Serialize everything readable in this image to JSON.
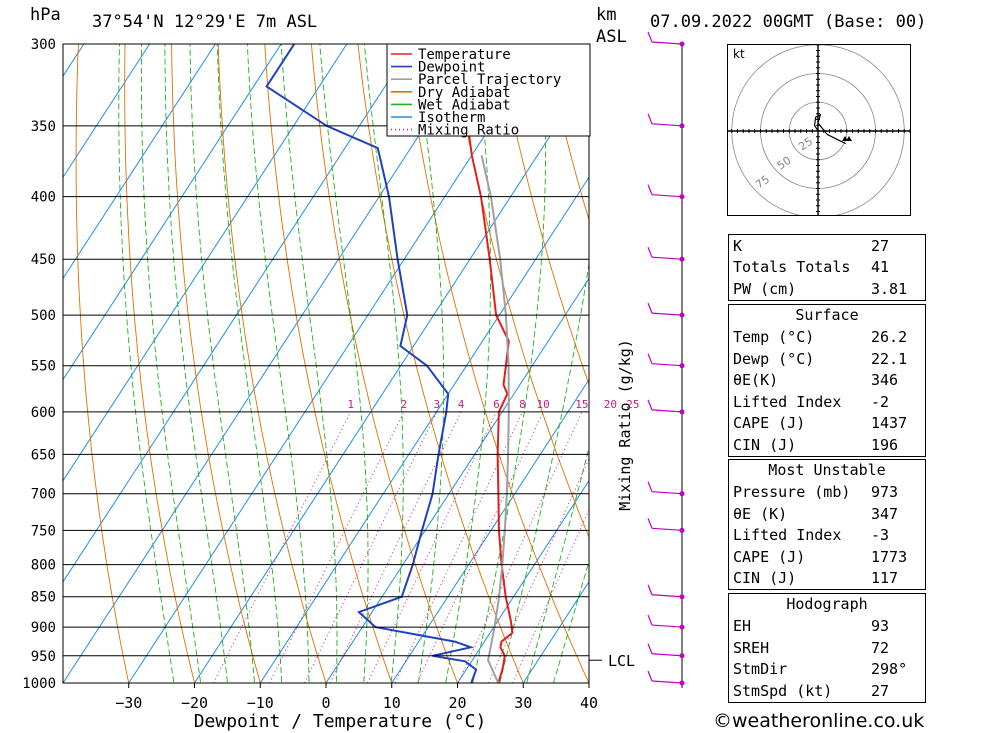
{
  "header": {
    "pressure_unit": "hPa",
    "location": "37°54'N  12°29'E  7m  ASL",
    "height_unit": "km",
    "height_ref": "ASL",
    "valid_time": "07.09.2022  00GMT  (Base: 00)"
  },
  "chart_data": {
    "type": "skew-t",
    "xlabel": "Dewpoint / Temperature (°C)",
    "ylabel": "hPa",
    "mixing_ratio_axis_label": "Mixing Ratio (g/kg)",
    "xlim": [
      -40,
      40
    ],
    "ylim_hpa": [
      1000,
      300
    ],
    "pressure_ticks": [
      300,
      350,
      400,
      450,
      500,
      550,
      600,
      650,
      700,
      750,
      800,
      850,
      900,
      950,
      1000
    ],
    "temperature_ticks": [
      -30,
      -20,
      -10,
      0,
      10,
      20,
      30,
      40
    ],
    "mixing_ratio_labels": [
      "1",
      "2",
      "3",
      "4",
      "6",
      "8",
      "10",
      "15",
      "20",
      "25"
    ],
    "mixing_ratio_values": [
      1,
      2,
      3,
      4,
      6,
      8,
      10,
      15,
      20,
      25
    ],
    "lcl_label": "LCL",
    "lcl_hpa": 958,
    "legend": {
      "position": "top-center",
      "entries": [
        {
          "name": "Temperature",
          "color": "#e02020",
          "style": "solid"
        },
        {
          "name": "Dewpoint",
          "color": "#2040c0",
          "style": "solid"
        },
        {
          "name": "Parcel Trajectory",
          "color": "#a0a0a0",
          "style": "solid"
        },
        {
          "name": "Dry Adiabat",
          "color": "#e07000",
          "style": "solid"
        },
        {
          "name": "Wet Adiabat",
          "color": "#20b020",
          "style": "solid"
        },
        {
          "name": "Isotherm",
          "color": "#2090e0",
          "style": "solid"
        },
        {
          "name": "Mixing Ratio",
          "color": "#c0208a",
          "style": "dotted"
        }
      ]
    },
    "series": [
      {
        "name": "Temperature",
        "color": "#e02020",
        "points": [
          [
            1000,
            26.2
          ],
          [
            975,
            25.5
          ],
          [
            950,
            24.5
          ],
          [
            935,
            23
          ],
          [
            925,
            22.6
          ],
          [
            910,
            23.4
          ],
          [
            890,
            22
          ],
          [
            850,
            18.8
          ],
          [
            800,
            15
          ],
          [
            750,
            11.2
          ],
          [
            700,
            7.5
          ],
          [
            650,
            3.5
          ],
          [
            600,
            -0.5
          ],
          [
            580,
            -1
          ],
          [
            570,
            -2.5
          ],
          [
            550,
            -4
          ],
          [
            525,
            -6
          ],
          [
            500,
            -10.5
          ],
          [
            450,
            -17
          ],
          [
            400,
            -24.5
          ],
          [
            370,
            -30
          ],
          [
            350,
            -33.5
          ],
          [
            300,
            -43
          ]
        ]
      },
      {
        "name": "Dewpoint",
        "color": "#2040c0",
        "points": [
          [
            1000,
            22.1
          ],
          [
            975,
            21.5
          ],
          [
            960,
            19
          ],
          [
            950,
            13.5
          ],
          [
            935,
            18.5
          ],
          [
            925,
            15.5
          ],
          [
            900,
            2
          ],
          [
            875,
            -2
          ],
          [
            850,
            3
          ],
          [
            800,
            1.5
          ],
          [
            750,
            -0.5
          ],
          [
            700,
            -2.5
          ],
          [
            650,
            -5.5
          ],
          [
            600,
            -8.5
          ],
          [
            580,
            -10
          ],
          [
            550,
            -16
          ],
          [
            530,
            -22
          ],
          [
            500,
            -24
          ],
          [
            450,
            -31
          ],
          [
            400,
            -38.5
          ],
          [
            365,
            -45
          ],
          [
            350,
            -55
          ],
          [
            325,
            -68
          ],
          [
            300,
            -68
          ]
        ]
      },
      {
        "name": "Parcel Trajectory",
        "color": "#a0a0a0",
        "points": [
          [
            1000,
            26.2
          ],
          [
            958,
            22.4
          ],
          [
            900,
            20.1
          ],
          [
            850,
            17.8
          ],
          [
            800,
            15.1
          ],
          [
            750,
            12.1
          ],
          [
            700,
            8.8
          ],
          [
            650,
            5.1
          ],
          [
            600,
            1
          ],
          [
            550,
            -3.6
          ],
          [
            500,
            -9
          ],
          [
            450,
            -15.4
          ],
          [
            400,
            -23
          ],
          [
            370,
            -28.5
          ]
        ]
      }
    ]
  },
  "wind_profile": {
    "marker_color": "#c000c0",
    "levels_hpa": [
      300,
      350,
      400,
      450,
      500,
      550,
      600,
      700,
      750,
      850,
      900,
      950,
      1000
    ]
  },
  "hodograph": {
    "unit_label": "kt",
    "ring_labels": [
      "25",
      "50",
      "75"
    ],
    "rings_kt": [
      25,
      50,
      75
    ]
  },
  "indices": {
    "rows": [
      {
        "label": "K",
        "value": "27"
      },
      {
        "label": "Totals Totals",
        "value": "41"
      },
      {
        "label": "PW (cm)",
        "value": "3.81"
      }
    ]
  },
  "surface": {
    "title": "Surface",
    "rows": [
      {
        "label": "Temp (°C)",
        "value": "26.2"
      },
      {
        "label": "Dewp (°C)",
        "value": "22.1"
      },
      {
        "label": "θE(K)",
        "value": "346"
      },
      {
        "label": "Lifted Index",
        "value": "-2"
      },
      {
        "label": "CAPE (J)",
        "value": "1437"
      },
      {
        "label": "CIN (J)",
        "value": "196"
      }
    ]
  },
  "most_unstable": {
    "title": "Most Unstable",
    "rows": [
      {
        "label": "Pressure (mb)",
        "value": "973"
      },
      {
        "label": "θE (K)",
        "value": "347"
      },
      {
        "label": "Lifted Index",
        "value": "-3"
      },
      {
        "label": "CAPE (J)",
        "value": "1773"
      },
      {
        "label": "CIN (J)",
        "value": "117"
      }
    ]
  },
  "hodograph_params": {
    "title": "Hodograph",
    "rows": [
      {
        "label": "EH",
        "value": "93"
      },
      {
        "label": "SREH",
        "value": "72"
      },
      {
        "label": "StmDir",
        "value": "298°"
      },
      {
        "label": "StmSpd (kt)",
        "value": "27"
      }
    ]
  },
  "footer": {
    "credit": "©weatheronline.co.uk"
  }
}
